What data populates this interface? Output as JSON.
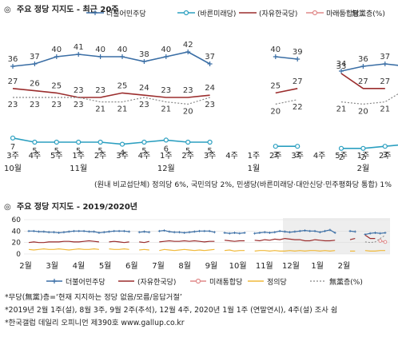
{
  "chart_data": [
    {
      "type": "line",
      "title": "주요 정당 지지도 - 최근 20주",
      "title_bullet": "◎",
      "categories": [
        "3주",
        "4주",
        "5주",
        "1주",
        "2주",
        "3주",
        "4주",
        "1주",
        "2주",
        "3주",
        "4주",
        "1주",
        "2주",
        "3주",
        "4주",
        "5주",
        "1주",
        "2주",
        "3주",
        "4주"
      ],
      "month_labels": [
        {
          "index": 0,
          "label": "10월"
        },
        {
          "index": 3,
          "label": "11월"
        },
        {
          "index": 7,
          "label": "12월"
        },
        {
          "index": 11,
          "label": "1월"
        },
        {
          "index": 16,
          "label": "2월"
        }
      ],
      "series": [
        {
          "name": "더불어민주당",
          "color": "#3a6ea5",
          "values": [
            36,
            37,
            40,
            41,
            40,
            40,
            38,
            40,
            42,
            37,
            null,
            null,
            40,
            39,
            null,
            34,
            36,
            37,
            36,
            37
          ]
        },
        {
          "name": "(바른미래당)",
          "color": "#2b9fc0",
          "values": [
            7,
            5,
            5,
            5,
            5,
            4,
            5,
            6,
            5,
            5,
            null,
            null,
            3,
            3,
            null,
            2,
            2,
            3,
            4,
            null
          ]
        },
        {
          "name": "(자유한국당)",
          "color": "#9b2d2d",
          "values": [
            27,
            26,
            25,
            23,
            23,
            25,
            24,
            23,
            23,
            24,
            null,
            null,
            25,
            27,
            null,
            33,
            27,
            27,
            null,
            null
          ]
        },
        {
          "name": "미래통합당",
          "color": "#e08a8a",
          "values": [
            null,
            null,
            null,
            null,
            null,
            null,
            null,
            null,
            null,
            null,
            null,
            null,
            null,
            null,
            null,
            null,
            null,
            null,
            23,
            21
          ]
        },
        {
          "name": "無黨층(%)",
          "color": "#888888",
          "dashed": true,
          "values": [
            23,
            23,
            23,
            23,
            21,
            21,
            23,
            21,
            20,
            23,
            null,
            null,
            20,
            22,
            null,
            21,
            20,
            21,
            27,
            33
          ]
        }
      ],
      "footnote": "(원내 비교섭단체) 정의당 6%, 국민의당 2%, 민생당(바른미래당·대안신당·민주평화당 통합) 1%"
    },
    {
      "type": "line",
      "title": "주요 정당 지지도 - 2019/2020년",
      "title_bullet": "◎",
      "yticks": [
        0,
        20,
        40,
        60
      ],
      "ylim": [
        0,
        60
      ],
      "x_labels": [
        "2월",
        "3월",
        "4월",
        "5월",
        "6월",
        "7월",
        "8월",
        "9월",
        "10월",
        "11월",
        "12월",
        "1월",
        "2월"
      ],
      "series": [
        {
          "name": "더불어민주당",
          "color": "#3a6ea5",
          "values": [
            40,
            40,
            39,
            39,
            38,
            38,
            37,
            38,
            39,
            40,
            40,
            40,
            39,
            39,
            37,
            38,
            39,
            40,
            40,
            40,
            39,
            null,
            38,
            39,
            38,
            null,
            40,
            41,
            39,
            38,
            38,
            37,
            38,
            39,
            40,
            40,
            40,
            38,
            null,
            37,
            36,
            37,
            36,
            37,
            null,
            36,
            37,
            38,
            37,
            38,
            40,
            39,
            38,
            39,
            40,
            41,
            40,
            40,
            38,
            40,
            42,
            37,
            null,
            null,
            40,
            39,
            null,
            34,
            36,
            37,
            36,
            37
          ]
        },
        {
          "name": "(자유한국당)",
          "color": "#9b2d2d",
          "values": [
            20,
            21,
            20,
            20,
            21,
            21,
            21,
            22,
            22,
            21,
            21,
            22,
            23,
            22,
            21,
            null,
            21,
            22,
            21,
            20,
            21,
            null,
            21,
            20,
            22,
            null,
            21,
            22,
            23,
            22,
            22,
            23,
            22,
            23,
            22,
            21,
            22,
            22,
            null,
            24,
            23,
            22,
            23,
            23,
            null,
            24,
            23,
            25,
            24,
            26,
            25,
            27,
            26,
            25,
            25,
            23,
            23,
            25,
            24,
            23,
            23,
            24,
            null,
            null,
            25,
            27,
            null,
            33,
            27,
            27,
            null,
            null
          ]
        },
        {
          "name": "미래통합당",
          "color": "#e08a8a",
          "values": [
            null,
            null,
            null,
            null,
            null,
            null,
            null,
            null,
            null,
            null,
            null,
            null,
            null,
            null,
            null,
            null,
            null,
            null,
            null,
            null,
            null,
            null,
            null,
            null,
            null,
            null,
            null,
            null,
            null,
            null,
            null,
            null,
            null,
            null,
            null,
            null,
            null,
            null,
            null,
            null,
            null,
            null,
            null,
            null,
            null,
            null,
            null,
            null,
            null,
            null,
            null,
            null,
            null,
            null,
            null,
            null,
            null,
            null,
            null,
            null,
            null,
            null,
            null,
            null,
            null,
            null,
            null,
            null,
            null,
            null,
            23,
            21
          ]
        },
        {
          "name": "정의당",
          "color": "#f0b93a",
          "values": [
            8,
            7,
            8,
            9,
            8,
            8,
            9,
            8,
            7,
            8,
            9,
            8,
            8,
            9,
            8,
            null,
            9,
            8,
            8,
            9,
            8,
            null,
            7,
            8,
            7,
            null,
            6,
            8,
            7,
            6,
            7,
            8,
            7,
            6,
            7,
            6,
            7,
            8,
            null,
            6,
            7,
            5,
            6,
            6,
            null,
            5,
            6,
            6,
            5,
            6,
            5,
            5,
            6,
            5,
            6,
            5,
            6,
            6,
            5,
            6,
            5,
            6,
            null,
            null,
            5,
            5,
            null,
            6,
            5,
            5,
            6,
            6
          ]
        },
        {
          "name": "無黨층(%)",
          "color": "#888888",
          "dashed": true,
          "values": [
            null,
            null,
            null,
            null,
            null,
            null,
            null,
            null,
            null,
            null,
            null,
            null,
            null,
            null,
            null,
            null,
            null,
            null,
            null,
            null,
            null,
            null,
            null,
            null,
            null,
            null,
            null,
            null,
            null,
            null,
            null,
            null,
            null,
            null,
            null,
            null,
            null,
            null,
            null,
            null,
            null,
            null,
            null,
            null,
            null,
            null,
            null,
            null,
            null,
            null,
            null,
            null,
            null,
            null,
            null,
            null,
            null,
            null,
            null,
            null,
            null,
            null,
            null,
            null,
            null,
            null,
            null,
            21,
            20,
            21,
            27,
            33
          ]
        }
      ],
      "shaded_from_label_index": 10
    }
  ],
  "footnotes": [
    "*무당(無黨)층=‘현재 지지하는 정당 없음/모름/응답거절’",
    "*2019년 2월 1주(설), 8월 3주, 9월 2주(추석), 12월 4주, 2020년 1월 1주 (연말연시), 4주(설) 조사 쉼",
    "*한국갤럽 데일리 오피니언 제390호 www.gallup.co.kr"
  ]
}
